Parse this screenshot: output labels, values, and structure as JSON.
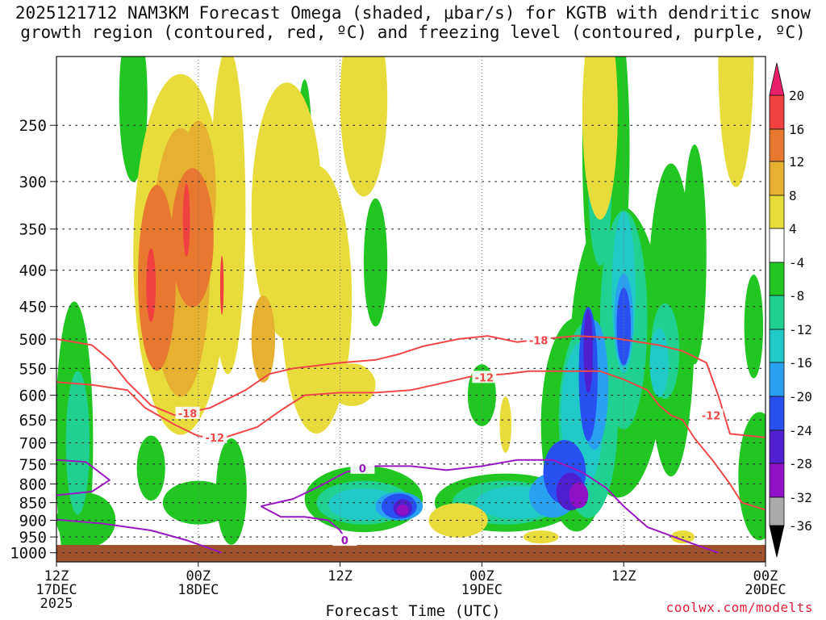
{
  "chart_data": {
    "type": "heatmap",
    "title_line1": "2025121712 NAM3KM Forecast Omega (shaded, μbar/s) for KGTB with dendritic snow",
    "title_line2": "growth region (contoured, red, ºC) and freezing level (contoured, purple, ºC)",
    "xlabel": "Forecast Time (UTC)",
    "credit": "coolwx.com/modelts",
    "y_ticks": [
      250,
      300,
      350,
      400,
      450,
      500,
      550,
      600,
      650,
      700,
      750,
      800,
      850,
      900,
      950,
      1000
    ],
    "y_range_hpa": [
      200,
      1030
    ],
    "x_range_hours": [
      0,
      60
    ],
    "x_ticks": [
      {
        "hour": 0,
        "line1": "12Z",
        "line2": "17DEC",
        "line3": "2025"
      },
      {
        "hour": 12,
        "line1": "00Z",
        "line2": "18DEC",
        "line3": ""
      },
      {
        "hour": 24,
        "line1": "12Z",
        "line2": "",
        "line3": ""
      },
      {
        "hour": 36,
        "line1": "00Z",
        "line2": "19DEC",
        "line3": ""
      },
      {
        "hour": 48,
        "line1": "12Z",
        "line2": "",
        "line3": ""
      },
      {
        "hour": 60,
        "line1": "00Z",
        "line2": "20DEC",
        "line3": ""
      }
    ],
    "colorbar": {
      "labels": [
        20,
        16,
        12,
        8,
        4,
        -4,
        -8,
        -12,
        -16,
        -20,
        -24,
        -28,
        -32,
        -36
      ],
      "colors": {
        "c20": "#e8206a",
        "c16": "#f04040",
        "c12": "#e87830",
        "c8": "#e6b030",
        "c4": "#e8dc3c",
        "c_neutral": "#ffffff",
        "cm4": "#22c622",
        "cm8": "#20d090",
        "cm12": "#20c8c8",
        "cm16": "#2aa0f0",
        "cm20": "#2850f0",
        "cm24": "#5020d0",
        "cm28": "#9010c8",
        "cm32": "#aaaaaa",
        "cm36": "#000000"
      }
    },
    "contours": {
      "dgz_minus18": {
        "label": "-18",
        "color": "#f04848"
      },
      "dgz_minus12": {
        "label": "-12",
        "color": "#f04848"
      },
      "freezing_0": {
        "label": "0",
        "color": "#9a18c0"
      }
    },
    "terrain_color": "#a0522d"
  }
}
